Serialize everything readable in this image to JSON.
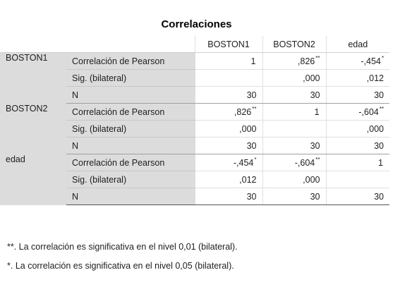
{
  "title": "Correlaciones",
  "columns": [
    "BOSTON1",
    "BOSTON2",
    "edad"
  ],
  "stat_labels": {
    "pearson": "Correlación de Pearson",
    "sig": "Sig. (bilateral)",
    "n": "N"
  },
  "groups": [
    {
      "name": "BOSTON1",
      "pearson": [
        {
          "v": "1",
          "m": ""
        },
        {
          "v": ",826",
          "m": "**"
        },
        {
          "v": "-,454",
          "m": "*"
        }
      ],
      "sig": [
        {
          "v": "",
          "m": ""
        },
        {
          "v": ",000",
          "m": ""
        },
        {
          "v": ",012",
          "m": ""
        }
      ],
      "n": [
        {
          "v": "30",
          "m": ""
        },
        {
          "v": "30",
          "m": ""
        },
        {
          "v": "30",
          "m": ""
        }
      ]
    },
    {
      "name": "BOSTON2",
      "pearson": [
        {
          "v": ",826",
          "m": "**"
        },
        {
          "v": "1",
          "m": ""
        },
        {
          "v": "-,604",
          "m": "**"
        }
      ],
      "sig": [
        {
          "v": ",000",
          "m": ""
        },
        {
          "v": "",
          "m": ""
        },
        {
          "v": ",000",
          "m": ""
        }
      ],
      "n": [
        {
          "v": "30",
          "m": ""
        },
        {
          "v": "30",
          "m": ""
        },
        {
          "v": "30",
          "m": ""
        }
      ]
    },
    {
      "name": "edad",
      "pearson": [
        {
          "v": "-,454",
          "m": "*"
        },
        {
          "v": "-,604",
          "m": "**"
        },
        {
          "v": "1",
          "m": ""
        }
      ],
      "sig": [
        {
          "v": ",012",
          "m": ""
        },
        {
          "v": ",000",
          "m": ""
        },
        {
          "v": "",
          "m": ""
        }
      ],
      "n": [
        {
          "v": "30",
          "m": ""
        },
        {
          "v": "30",
          "m": ""
        },
        {
          "v": "30",
          "m": ""
        }
      ]
    }
  ],
  "footnotes": {
    "fn1_mark": "**",
    "fn1_text": ". La correlación es significativa en el nivel 0,01 (bilateral).",
    "fn2_mark": "*",
    "fn2_text": ". La correlación es significativa en el nivel 0,05 (bilateral)."
  },
  "colors": {
    "label_bg": "#dcdcdc",
    "cell_bg": "#ffffff",
    "text": "#1e1e1e"
  }
}
